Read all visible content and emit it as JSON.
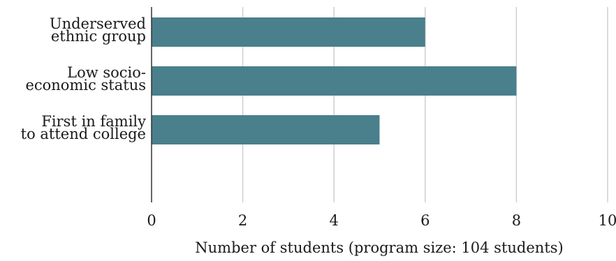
{
  "chart_data": {
    "type": "bar",
    "orientation": "horizontal",
    "categories": [
      [
        "Underserved",
        "ethnic group"
      ],
      [
        "Low socio-",
        "economic status"
      ],
      [
        "First in family",
        "to attend college"
      ]
    ],
    "values": [
      6,
      8,
      5
    ],
    "xlabel": "Number of students (program size: 104 students)",
    "ylabel": "",
    "title": "",
    "xlim": [
      0,
      10
    ],
    "xticks": [
      0,
      2,
      4,
      6,
      8,
      10
    ],
    "grid": "vertical",
    "bar_color": "#4a7f8c"
  }
}
